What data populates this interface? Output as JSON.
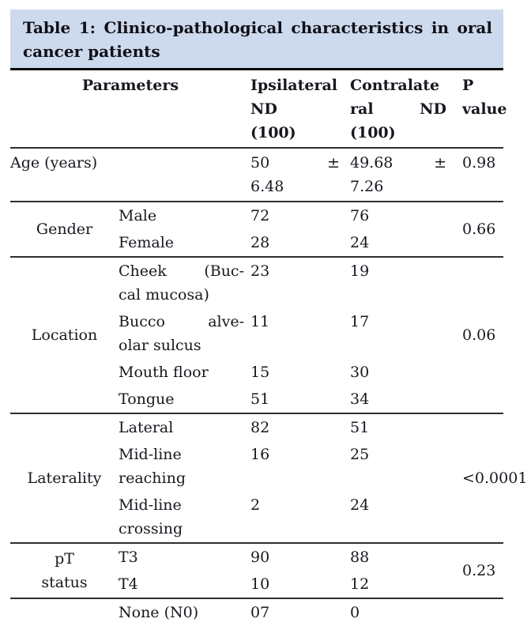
{
  "colors": {
    "title_background": "#cdd9ec",
    "text": "#17171f",
    "rule": "#2e2e33"
  },
  "title": {
    "line1": "Table 1: Clinico-pathological characteristics in oral",
    "line2": "cancer patients"
  },
  "header": {
    "parameters": "Parameters",
    "ipsilateral": {
      "l1": "Ipsilateral",
      "l2": "ND",
      "l3": "(100)"
    },
    "contralateral": {
      "l1": "Contralate",
      "l2a": "ral",
      "l2b": "ND",
      "l3": "(100)"
    },
    "p": {
      "l1": "P",
      "l2": "value"
    }
  },
  "age": {
    "label": "Age (years)",
    "ipsi": {
      "mean": "50",
      "pm": "±",
      "sd": "6.48"
    },
    "contra": {
      "mean": "49.68",
      "pm": "±",
      "sd": "7.26"
    },
    "p": "0.98"
  },
  "gender": {
    "label": "Gender",
    "p": "0.66",
    "rows": [
      {
        "name": "Male",
        "ipsi": "72",
        "contra": "76"
      },
      {
        "name": "Female",
        "ipsi": "28",
        "contra": "24"
      }
    ]
  },
  "location": {
    "label": "Location",
    "p": "0.06",
    "rows": [
      {
        "name_l1": "Cheek (Buc-",
        "name_l2": "cal mucosa)",
        "ipsi": "23",
        "contra": "19"
      },
      {
        "name_l1": "Bucco alve-",
        "name_l2": "olar sulcus",
        "ipsi": "11",
        "contra": "17"
      },
      {
        "name": "Mouth floor",
        "ipsi": "15",
        "contra": "30"
      },
      {
        "name": "Tongue",
        "ipsi": "51",
        "contra": "34"
      }
    ]
  },
  "laterality": {
    "label": "Laterality",
    "p": "<0.0001",
    "rows": [
      {
        "name": "Lateral",
        "ipsi": "82",
        "contra": "51"
      },
      {
        "name_l1": "Mid-line",
        "name_l2": "reaching",
        "ipsi": "16",
        "contra": "25"
      },
      {
        "name_l1": "Mid-line",
        "name_l2": "crossing",
        "ipsi": "2",
        "contra": "24"
      }
    ]
  },
  "pt_status": {
    "label_l1": "pT",
    "label_l2": "status",
    "p": "0.23",
    "rows": [
      {
        "name": "T3",
        "ipsi": "90",
        "contra": "88"
      },
      {
        "name": "T4",
        "ipsi": "10",
        "contra": "12"
      }
    ]
  },
  "partial_row": {
    "name": "None (N0)",
    "ipsi": "07",
    "contra": "0"
  }
}
